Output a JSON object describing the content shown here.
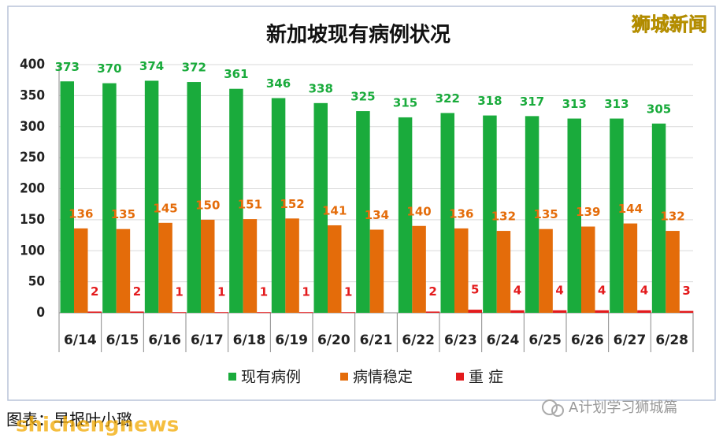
{
  "chart_data": {
    "type": "bar",
    "title": "新加坡现有病例状况",
    "categories": [
      "6/14",
      "6/15",
      "6/16",
      "6/17",
      "6/18",
      "6/19",
      "6/20",
      "6/21",
      "6/22",
      "6/23",
      "6/24",
      "6/25",
      "6/26",
      "6/27",
      "6/28"
    ],
    "series": [
      {
        "name": "现有病例",
        "color": "#1aab3c",
        "values": [
          373,
          370,
          374,
          372,
          361,
          346,
          338,
          325,
          315,
          322,
          318,
          317,
          313,
          313,
          305
        ]
      },
      {
        "name": "病情稳定",
        "color": "#e46c0a",
        "values": [
          136,
          135,
          145,
          150,
          151,
          152,
          141,
          134,
          140,
          136,
          132,
          135,
          139,
          144,
          132
        ]
      },
      {
        "name": "重 症",
        "color": "#e31a1c",
        "values": [
          2,
          2,
          1,
          1,
          1,
          1,
          1,
          null,
          2,
          5,
          4,
          4,
          4,
          4,
          3
        ]
      }
    ],
    "ylim": [
      0,
      400
    ],
    "yticks": [
      0,
      50,
      100,
      150,
      200,
      250,
      300,
      350,
      400
    ],
    "grid": true
  },
  "watermark": "狮城新闻",
  "footer": {
    "credit": "图表：早报叶小璐",
    "site": "shichengnews",
    "account": "A计划学习狮城篇"
  }
}
